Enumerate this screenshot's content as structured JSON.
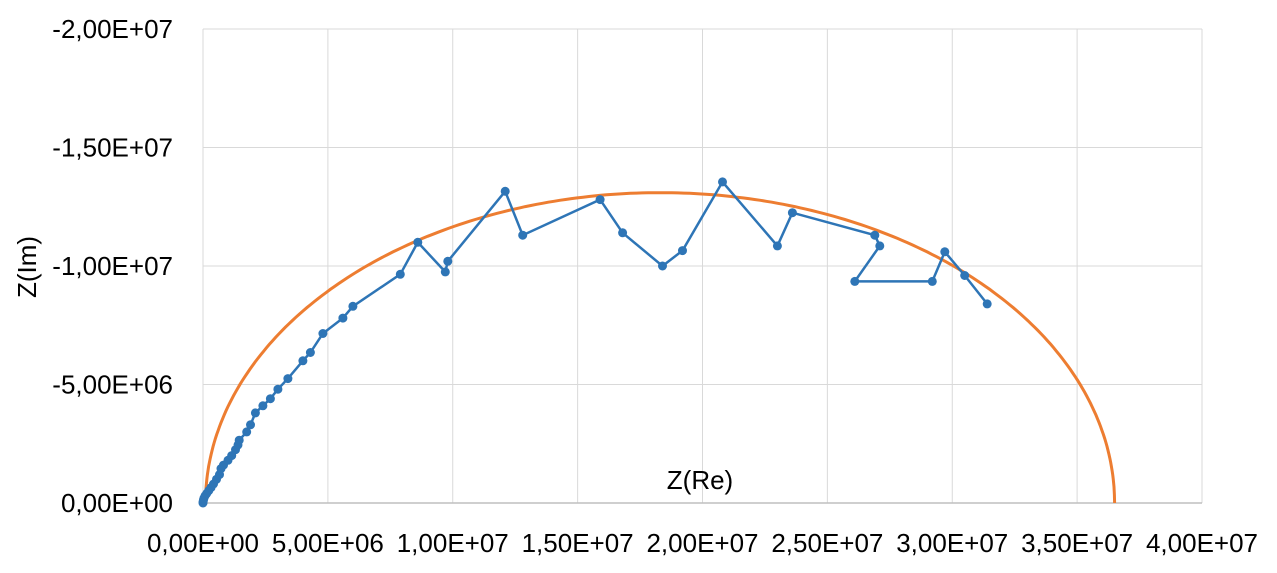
{
  "chart_data": {
    "type": "scatter",
    "xlabel": "Z(Re)",
    "ylabel": "Z(Im)",
    "xlim": [
      0,
      40000000
    ],
    "ylim": [
      0,
      -20000000
    ],
    "x_ticks": [
      "0,00E+00",
      "5,00E+06",
      "1,00E+07",
      "1,50E+07",
      "2,00E+07",
      "2,50E+07",
      "3,00E+07",
      "3,50E+07",
      "4,00E+07"
    ],
    "y_ticks": [
      "0,00E+00",
      "-5,00E+06",
      "-1,00E+07",
      "-1,50E+07",
      "-2,00E+07"
    ],
    "grid": true,
    "series": [
      {
        "kind": "measured",
        "color": "#2e75b6",
        "points": [
          [
            0,
            0
          ],
          [
            5000,
            -50000
          ],
          [
            15000,
            -120000
          ],
          [
            35000,
            -200000
          ],
          [
            80000,
            -300000
          ],
          [
            150000,
            -400000
          ],
          [
            230000,
            -520000
          ],
          [
            320000,
            -650000
          ],
          [
            420000,
            -800000
          ],
          [
            540000,
            -1000000
          ],
          [
            660000,
            -1200000
          ],
          [
            720000,
            -1450000
          ],
          [
            820000,
            -1600000
          ],
          [
            1000000,
            -1800000
          ],
          [
            1150000,
            -2000000
          ],
          [
            1300000,
            -2250000
          ],
          [
            1400000,
            -2450000
          ],
          [
            1450000,
            -2650000
          ],
          [
            1750000,
            -3000000
          ],
          [
            1900000,
            -3300000
          ],
          [
            2100000,
            -3800000
          ],
          [
            2400000,
            -4100000
          ],
          [
            2700000,
            -4400000
          ],
          [
            3000000,
            -4800000
          ],
          [
            3400000,
            -5250000
          ],
          [
            4000000,
            -6000000
          ],
          [
            4300000,
            -6350000
          ],
          [
            4800000,
            -7150000
          ],
          [
            5600000,
            -7800000
          ],
          [
            6000000,
            -8300000
          ],
          [
            7900000,
            -9650000
          ],
          [
            8600000,
            -11000000
          ],
          [
            9700000,
            -9750000
          ],
          [
            9800000,
            -10200000
          ],
          [
            12100000,
            -13150000
          ],
          [
            12800000,
            -11300000
          ],
          [
            15900000,
            -12800000
          ],
          [
            16800000,
            -11400000
          ],
          [
            18400000,
            -10000000
          ],
          [
            19200000,
            -10650000
          ],
          [
            20800000,
            -13550000
          ],
          [
            23000000,
            -10850000
          ],
          [
            23600000,
            -12250000
          ],
          [
            26900000,
            -11300000
          ],
          [
            27100000,
            -10850000
          ],
          [
            26100000,
            -9350000
          ],
          [
            29200000,
            -9350000
          ],
          [
            29700000,
            -10600000
          ],
          [
            30500000,
            -9600000
          ],
          [
            31400000,
            -8400000
          ]
        ]
      },
      {
        "kind": "fit",
        "color": "#ed7d31",
        "center_re": 18300000,
        "radius": 18200000,
        "depression_factor": 1.39
      }
    ]
  }
}
